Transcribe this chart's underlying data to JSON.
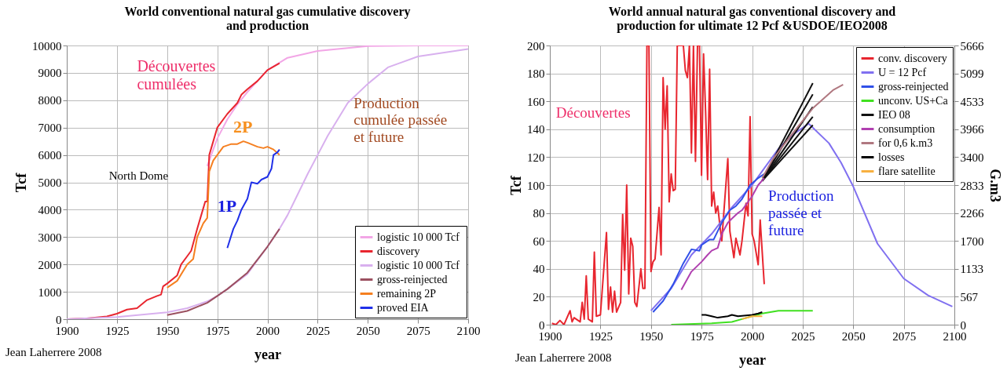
{
  "chart_data": [
    {
      "type": "line",
      "title": "World conventional natural gas cumulative discovery and production",
      "xlabel": "year",
      "ylabel": "Tcf",
      "xlim": [
        1900,
        2100
      ],
      "xticks": [
        1900,
        1925,
        1950,
        1975,
        2000,
        2025,
        2050,
        2075,
        2100
      ],
      "ylim": [
        0,
        10000
      ],
      "yticks": [
        0,
        1000,
        2000,
        3000,
        4000,
        5000,
        6000,
        7000,
        8000,
        9000,
        10000
      ],
      "grid": true,
      "legend": "bottom right",
      "annotations": [
        "Découvertes cumulées",
        "2P",
        "1P",
        "North Dome",
        "Production cumulée passée et future",
        "Jean Laherrere 2008"
      ],
      "series": [
        {
          "name": "logistic  10 000 Tcf",
          "color": "#f2a6e6",
          "x": [
            1970,
            1975,
            1980,
            1985,
            1990,
            2000,
            2010,
            2025,
            2050,
            2075,
            2100
          ],
          "values": [
            5600,
            6600,
            7300,
            7850,
            8300,
            9100,
            9550,
            9800,
            9980,
            10000,
            10000
          ]
        },
        {
          "name": "discovery",
          "color": "#e8262f",
          "x": [
            1900,
            1910,
            1920,
            1925,
            1930,
            1935,
            1940,
            1945,
            1947,
            1948,
            1950,
            1955,
            1957,
            1960,
            1962,
            1965,
            1967,
            1969,
            1970,
            1971,
            1973,
            1975,
            1980,
            1985,
            1987,
            1990,
            1995,
            2000,
            2006
          ],
          "values": [
            0,
            30,
            100,
            200,
            350,
            400,
            700,
            850,
            900,
            1200,
            1300,
            1600,
            2000,
            2300,
            2500,
            3300,
            3800,
            4300,
            4300,
            6000,
            6500,
            7000,
            7500,
            7900,
            8200,
            8400,
            8700,
            9100,
            9350
          ]
        },
        {
          "name": "logistic  10 000 Tcf",
          "color": "#d8b0ee",
          "x": [
            1900,
            1925,
            1950,
            1960,
            1970,
            1975,
            1980,
            1990,
            2000,
            2006,
            2010,
            2020,
            2025,
            2030,
            2040,
            2050,
            2060,
            2075,
            2100
          ],
          "values": [
            0,
            80,
            250,
            400,
            650,
            850,
            1100,
            1650,
            2650,
            3300,
            3800,
            5300,
            6000,
            6700,
            7900,
            8600,
            9200,
            9600,
            9870
          ]
        },
        {
          "name": "gross-reinjected",
          "color": "#9b5060",
          "x": [
            1950,
            1960,
            1970,
            1975,
            1980,
            1990,
            2000,
            2006
          ],
          "values": [
            150,
            300,
            600,
            850,
            1100,
            1700,
            2650,
            3300
          ]
        },
        {
          "name": "remaining 2P",
          "color": "#f57f20",
          "x": [
            1950,
            1955,
            1960,
            1963,
            1965,
            1968,
            1970,
            1971,
            1973,
            1975,
            1978,
            1982,
            1985,
            1988,
            1990,
            1995,
            1998,
            2000,
            2003,
            2006
          ],
          "values": [
            1150,
            1400,
            2000,
            2200,
            3000,
            3500,
            3700,
            5400,
            5800,
            6000,
            6300,
            6400,
            6400,
            6500,
            6450,
            6300,
            6250,
            6300,
            6200,
            6000
          ]
        },
        {
          "name": "proved  EIA",
          "color": "#2030e8",
          "x": [
            1980,
            1983,
            1985,
            1987,
            1990,
            1992,
            1995,
            1997,
            2000,
            2002,
            2003,
            2005,
            2006
          ],
          "values": [
            2600,
            3300,
            3600,
            4000,
            4400,
            5000,
            4950,
            5100,
            5200,
            5500,
            6000,
            6100,
            6200
          ]
        }
      ]
    },
    {
      "type": "line",
      "title": "World annual natural gas conventional discovery and production for ultimate 12 Pcf &USDOE/IEO2008",
      "xlabel": "year",
      "ylabel": "Tcf",
      "y2label": "G.m3",
      "xlim": [
        1900,
        2100
      ],
      "xticks": [
        1900,
        1925,
        1950,
        1975,
        2000,
        2025,
        2050,
        2075,
        2100
      ],
      "ylim": [
        0,
        200
      ],
      "yticks": [
        0,
        20,
        40,
        60,
        80,
        100,
        120,
        140,
        160,
        180,
        200
      ],
      "y2lim": [
        0,
        5666
      ],
      "y2ticks": [
        0,
        567,
        1133,
        1700,
        2266,
        2833,
        3400,
        3966,
        4533,
        5099,
        5666
      ],
      "grid": true,
      "legend": "top right",
      "annotations": [
        "Découvertes",
        "Production passée et future",
        "Jean Laherrere 2008"
      ],
      "series": [
        {
          "name": "conv. discovery",
          "color": "#e8262f",
          "x": [
            1901,
            1903,
            1905,
            1907,
            1910,
            1911,
            1912,
            1915,
            1916,
            1917,
            1918,
            1919,
            1921,
            1922,
            1923,
            1925,
            1928,
            1929,
            1930,
            1931,
            1932,
            1933,
            1935,
            1936,
            1937,
            1938,
            1939,
            1940,
            1941,
            1942,
            1943,
            1945,
            1946,
            1947,
            1948,
            1949,
            1950,
            1951,
            1952,
            1954,
            1955,
            1956,
            1957,
            1958,
            1959,
            1960,
            1961,
            1962,
            1963,
            1964,
            1965,
            1966,
            1967,
            1968,
            1969,
            1970,
            1971,
            1972,
            1973,
            1974,
            1975,
            1976,
            1977,
            1978,
            1979,
            1980,
            1981,
            1982,
            1983,
            1984,
            1985,
            1986,
            1988,
            1989,
            1991,
            1992,
            1994,
            1995,
            1997,
            1998,
            1999,
            2000,
            2001,
            2003,
            2004,
            2006
          ],
          "values": [
            1,
            0,
            3,
            0,
            10,
            2,
            5,
            2,
            16,
            4,
            35,
            4,
            2,
            52,
            6,
            7,
            66,
            11,
            27,
            9,
            24,
            9,
            16,
            79,
            39,
            100,
            22,
            62,
            56,
            16,
            13,
            40,
            26,
            26,
            200,
            200,
            38,
            45,
            47,
            84,
            50,
            177,
            140,
            171,
            88,
            108,
            96,
            97,
            200,
            200,
            200,
            200,
            182,
            177,
            200,
            123,
            200,
            117,
            200,
            200,
            107,
            194,
            153,
            104,
            183,
            85,
            95,
            80,
            85,
            72,
            60,
            80,
            119,
            67,
            48,
            62,
            50,
            60,
            87,
            78,
            149,
            65,
            60,
            43,
            75,
            29
          ]
        },
        {
          "name": "U = 12 Pcf",
          "color": "#8070f0",
          "x": [
            1950,
            1960,
            1970,
            1980,
            1990,
            2000,
            2006,
            2013,
            2020,
            2028,
            2038,
            2044,
            2050,
            2062,
            2075,
            2087,
            2099
          ],
          "values": [
            10,
            26,
            50,
            65,
            84,
            100,
            112,
            126,
            136,
            144,
            130,
            116,
            99,
            58,
            33,
            21,
            13
          ]
        },
        {
          "name": "gross-reinjected",
          "color": "#3050e8",
          "x": [
            1951,
            1956,
            1961,
            1966,
            1970,
            1974,
            1975,
            1979,
            1981,
            1985,
            1989,
            1992,
            1995,
            1999,
            2003,
            2006
          ],
          "values": [
            9,
            17,
            29,
            44,
            54,
            53,
            57,
            61,
            61,
            73,
            82,
            85,
            90,
            100,
            105,
            108
          ]
        },
        {
          "name": "unconv. US+Ca",
          "color": "#40e020",
          "x": [
            1960,
            1980,
            1990,
            1995,
            2000,
            2005,
            2013,
            2030
          ],
          "values": [
            0,
            1,
            2,
            4,
            6,
            8,
            10,
            10
          ]
        },
        {
          "name": "IEO 08",
          "color": "#111111",
          "x": [
            2005,
            2030
          ],
          "values": [
            103,
            173
          ]
        },
        {
          "color": "#111111",
          "x": [
            2005,
            2030
          ],
          "values": [
            103,
            165
          ]
        },
        {
          "color": "#111111",
          "x": [
            2005,
            2030
          ],
          "values": [
            103,
            156
          ]
        },
        {
          "color": "#111111",
          "x": [
            2005,
            2030
          ],
          "values": [
            103,
            149
          ]
        },
        {
          "color": "#111111",
          "x": [
            2005,
            2030
          ],
          "values": [
            103,
            143
          ]
        },
        {
          "name": "consumption",
          "color": "#b040b0",
          "x": [
            1965,
            1970,
            1975,
            1978,
            1980,
            1983,
            1985,
            1988,
            1990,
            1993,
            1995,
            2000,
            2003,
            2006
          ],
          "values": [
            25,
            38,
            45,
            50,
            53,
            55,
            65,
            73,
            76,
            80,
            82,
            92,
            100,
            105
          ]
        },
        {
          "name": "for 0,6 k.m3",
          "color": "#b07880",
          "x": [
            2005,
            2010,
            2020,
            2030,
            2040,
            2045
          ],
          "values": [
            105,
            118,
            137,
            155,
            168,
            172
          ]
        },
        {
          "name": "losses",
          "color": "#000000",
          "x": [
            1975,
            1977,
            1980,
            1983,
            1988,
            1990,
            1993,
            2000,
            2003,
            2005
          ],
          "values": [
            7,
            7,
            6,
            5,
            6,
            7,
            6,
            7,
            8,
            9
          ]
        },
        {
          "name": "flare satellite",
          "color": "#f8b040",
          "x": [
            1995,
            2000,
            2005
          ],
          "values": [
            4,
            6,
            6
          ]
        }
      ]
    }
  ]
}
